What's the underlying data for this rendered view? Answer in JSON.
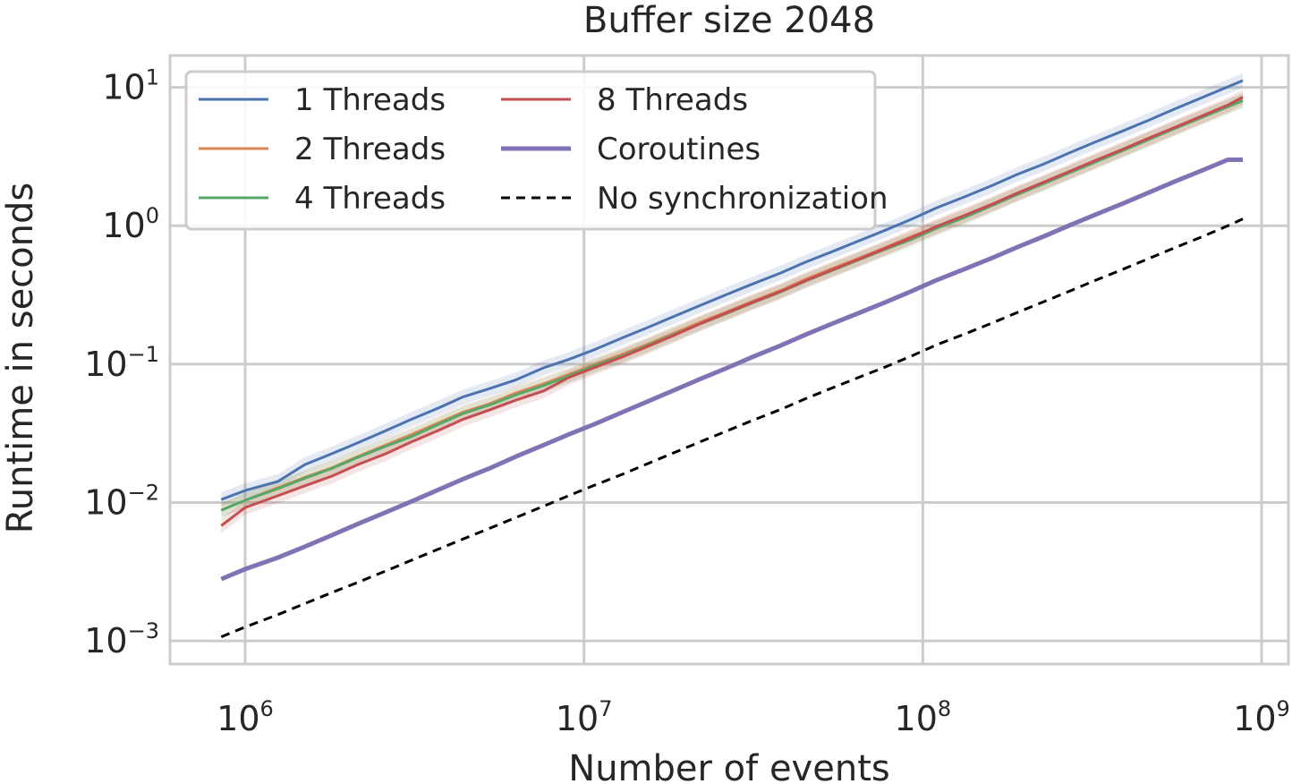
{
  "chart_data": {
    "type": "line",
    "title": "Buffer size 2048",
    "xlabel": "Number of events",
    "ylabel": "Runtime in seconds",
    "xscale": "log",
    "yscale": "log",
    "xlim": [
      600000,
      1200000000
    ],
    "ylim": [
      0.00068,
      17
    ],
    "grid": true,
    "legend_position": "top-left",
    "legend_columns": 2,
    "xticks": [
      {
        "base": "10",
        "exp": "6"
      },
      {
        "base": "10",
        "exp": "7"
      },
      {
        "base": "10",
        "exp": "8"
      },
      {
        "base": "10",
        "exp": "9"
      }
    ],
    "xtick_values": [
      1000000,
      10000000,
      100000000,
      1000000000
    ],
    "yticks": [
      {
        "base": "10",
        "exp": "−3"
      },
      {
        "base": "10",
        "exp": "−2"
      },
      {
        "base": "10",
        "exp": "−1"
      },
      {
        "base": "10",
        "exp": "0"
      },
      {
        "base": "10",
        "exp": "1"
      }
    ],
    "ytick_values": [
      0.001,
      0.01,
      0.1,
      1,
      10
    ],
    "x": [
      850000,
      1000000,
      1250000,
      1500000,
      1800000,
      2150000,
      2600000,
      3100000,
      3700000,
      4400000,
      5300000,
      6300000,
      7600000,
      9000000,
      10800000,
      13000000,
      15500000,
      18500000,
      22000000,
      26500000,
      31500000,
      38000000,
      45000000,
      54000000,
      65000000,
      78000000,
      93000000,
      110000000,
      133000000,
      160000000,
      190000000,
      228000000,
      272000000,
      325000000,
      390000000,
      465000000,
      555000000,
      665000000,
      795000000,
      880000000
    ],
    "series": [
      {
        "name": "1 Threads",
        "color": "#4c72b0",
        "stroke_width": 3,
        "values": [
          0.0105,
          0.0122,
          0.0142,
          0.0188,
          0.0225,
          0.027,
          0.033,
          0.04,
          0.048,
          0.058,
          0.067,
          0.077,
          0.094,
          0.108,
          0.128,
          0.155,
          0.185,
          0.222,
          0.265,
          0.32,
          0.38,
          0.455,
          0.545,
          0.65,
          0.78,
          0.935,
          1.12,
          1.35,
          1.62,
          1.95,
          2.35,
          2.8,
          3.38,
          4.05,
          4.85,
          5.8,
          7.0,
          8.4,
          10.1,
          11.2
        ]
      },
      {
        "name": "2 Threads",
        "color": "#dd8452",
        "stroke_width": 3,
        "values": [
          0.0088,
          0.0104,
          0.0128,
          0.0152,
          0.0178,
          0.0215,
          0.026,
          0.031,
          0.0375,
          0.045,
          0.052,
          0.062,
          0.072,
          0.084,
          0.1,
          0.118,
          0.14,
          0.168,
          0.2,
          0.24,
          0.285,
          0.34,
          0.41,
          0.49,
          0.585,
          0.7,
          0.84,
          0.98,
          1.18,
          1.42,
          1.7,
          2.04,
          2.45,
          2.95,
          3.55,
          4.25,
          5.1,
          6.1,
          7.3,
          8.1
        ]
      },
      {
        "name": "4 Threads",
        "color": "#55a868",
        "stroke_width": 3,
        "values": [
          0.0088,
          0.0104,
          0.0126,
          0.015,
          0.0176,
          0.0212,
          0.0255,
          0.03,
          0.0365,
          0.044,
          0.051,
          0.06,
          0.07,
          0.082,
          0.098,
          0.115,
          0.137,
          0.164,
          0.195,
          0.234,
          0.278,
          0.332,
          0.398,
          0.475,
          0.57,
          0.68,
          0.8,
          0.96,
          1.15,
          1.4,
          1.68,
          2.02,
          2.42,
          2.9,
          3.5,
          4.2,
          5.05,
          6.05,
          7.25,
          8.0
        ]
      },
      {
        "name": "8 Threads",
        "color": "#c44e52",
        "stroke_width": 3,
        "values": [
          0.0068,
          0.0092,
          0.0112,
          0.0132,
          0.0155,
          0.0188,
          0.0225,
          0.0275,
          0.033,
          0.04,
          0.047,
          0.055,
          0.064,
          0.08,
          0.095,
          0.113,
          0.135,
          0.162,
          0.196,
          0.236,
          0.28,
          0.335,
          0.4,
          0.48,
          0.575,
          0.69,
          0.825,
          0.99,
          1.19,
          1.43,
          1.72,
          2.07,
          2.48,
          2.98,
          3.58,
          4.3,
          5.15,
          6.2,
          7.45,
          8.5
        ]
      },
      {
        "name": "Coroutines",
        "color": "#8172b3",
        "stroke_width": 5,
        "values": [
          0.0028,
          0.0033,
          0.004,
          0.0048,
          0.0058,
          0.007,
          0.0085,
          0.0102,
          0.0123,
          0.0148,
          0.0178,
          0.0215,
          0.026,
          0.031,
          0.037,
          0.045,
          0.054,
          0.065,
          0.078,
          0.094,
          0.113,
          0.136,
          0.163,
          0.196,
          0.235,
          0.282,
          0.338,
          0.405,
          0.487,
          0.585,
          0.7,
          0.84,
          1.01,
          1.21,
          1.45,
          1.74,
          2.09,
          2.5,
          3.0,
          3.0
        ]
      },
      {
        "name": "No synchronization",
        "color": "#000000",
        "stroke_width": 3,
        "dashed": true,
        "values": [
          0.00107,
          0.00126,
          0.00155,
          0.00186,
          0.00223,
          0.00265,
          0.0032,
          0.00383,
          0.00458,
          0.00545,
          0.00655,
          0.0078,
          0.0094,
          0.0112,
          0.0134,
          0.016,
          0.0192,
          0.023,
          0.0274,
          0.033,
          0.0393,
          0.047,
          0.0562,
          0.0673,
          0.0805,
          0.096,
          0.115,
          0.138,
          0.165,
          0.198,
          0.236,
          0.283,
          0.338,
          0.405,
          0.485,
          0.58,
          0.695,
          0.83,
          1.0,
          1.12
        ]
      }
    ]
  }
}
